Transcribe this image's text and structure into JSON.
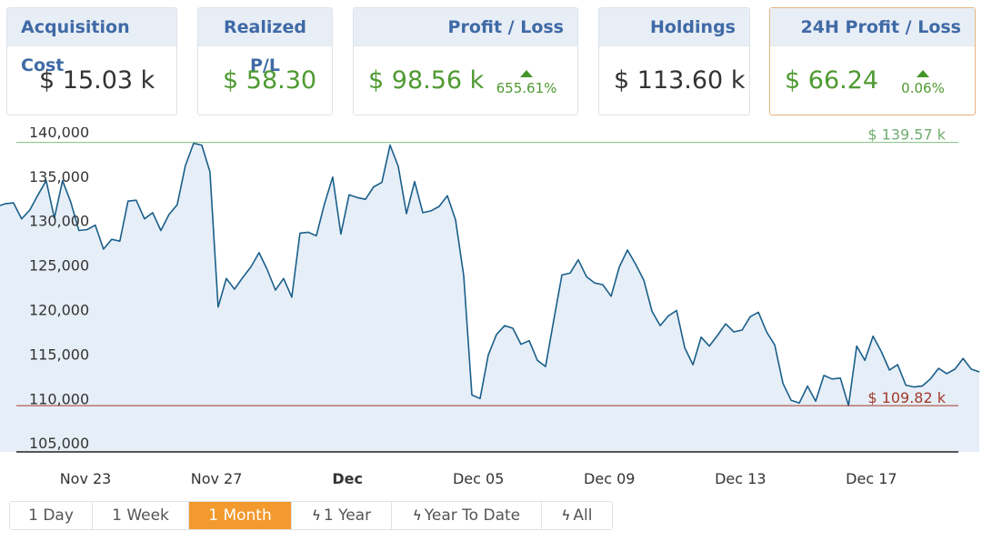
{
  "cards": [
    {
      "title": "Acquisition Cost",
      "value": "$ 15.03 k",
      "tone": "neutral"
    },
    {
      "title": "Realized P/L",
      "value": "$ 58.30",
      "tone": "positive"
    },
    {
      "title": "Profit / Loss",
      "value": "$ 98.56 k",
      "tone": "positive",
      "change": "655.61%"
    },
    {
      "title": "Holdings",
      "value": "$ 113.60 k",
      "tone": "neutral"
    },
    {
      "title": "24H Profit / Loss",
      "value": "$ 66.24",
      "tone": "positive",
      "change": "0.06%"
    }
  ],
  "colors": {
    "line": "#1a5f8a",
    "area": "#e6eef7",
    "high": "#7fbf7f",
    "low": "#a33a2c",
    "accent": "#f39a2e",
    "positive": "#4f9a32"
  },
  "range_buttons": [
    {
      "label": "1 Day",
      "icon": ""
    },
    {
      "label": "1 Week",
      "icon": ""
    },
    {
      "label": "1 Month",
      "icon": "",
      "active": true
    },
    {
      "label": "1 Year",
      "icon": "bolt-icon"
    },
    {
      "label": "Year To Date",
      "icon": "bolt-icon"
    },
    {
      "label": "All",
      "icon": "bolt-icon"
    }
  ],
  "chart_data": {
    "type": "area",
    "title": "",
    "xlabel": "",
    "ylabel": "",
    "ylim": [
      104000,
      140500
    ],
    "grid": false,
    "yticks": [
      "105,000",
      "110,000",
      "115,000",
      "120,000",
      "125,000",
      "130,000",
      "135,000",
      "140,000"
    ],
    "ytick_values": [
      105000,
      110000,
      115000,
      120000,
      125000,
      130000,
      135000,
      140000
    ],
    "xticks": [
      {
        "label": "Nov 23",
        "day": 23.0,
        "bold": false
      },
      {
        "label": "Nov 27",
        "day": 27.0,
        "bold": false
      },
      {
        "label": "Dec",
        "day": 31.0,
        "bold": true
      },
      {
        "label": "Dec 05",
        "day": 35.0,
        "bold": false
      },
      {
        "label": "Dec 09",
        "day": 39.0,
        "bold": false
      },
      {
        "label": "Dec 13",
        "day": 43.0,
        "bold": false
      },
      {
        "label": "Dec 17",
        "day": 47.0,
        "bold": false
      }
    ],
    "x_start": 20.3,
    "x_end": 50.3,
    "high": {
      "value": 138800,
      "label": "$ 139.57 k"
    },
    "low": {
      "value": 109200,
      "label": "$ 109.82 k"
    },
    "series": [
      {
        "values": [
          131600,
          131900,
          132000,
          130200,
          131200,
          132900,
          134500,
          130300,
          134500,
          132100,
          128900,
          129000,
          129500,
          126800,
          127900,
          127700,
          132200,
          132300,
          130200,
          130900,
          128900,
          130700,
          131800,
          136200,
          138700,
          138500,
          135500,
          120300,
          123500,
          122300,
          123600,
          124800,
          126400,
          124500,
          122200,
          123500,
          121400,
          128600,
          128700,
          128300,
          131900,
          134900,
          128500,
          132900,
          132600,
          132400,
          133800,
          134300,
          138500,
          136100,
          130800,
          134400,
          130900,
          131100,
          131600,
          132800,
          130100,
          123800,
          110400,
          110000,
          114900,
          117200,
          118200,
          117900,
          116100,
          116500,
          114300,
          113600,
          118800,
          123900,
          124100,
          125600,
          123700,
          123000,
          122800,
          121500,
          124800,
          126700,
          125100,
          123300,
          119800,
          118200,
          119300,
          119900,
          115700,
          113800,
          116900,
          115900,
          117100,
          118400,
          117500,
          117700,
          119200,
          119700,
          117500,
          116000,
          111700,
          109800,
          109500,
          111400,
          109700,
          112600,
          112200,
          112300,
          109200,
          115900,
          114300,
          117000,
          115300,
          113200,
          113800,
          111500,
          111300,
          111400,
          112200,
          113400,
          112800,
          113300,
          114500,
          113300,
          113000
        ]
      }
    ]
  }
}
